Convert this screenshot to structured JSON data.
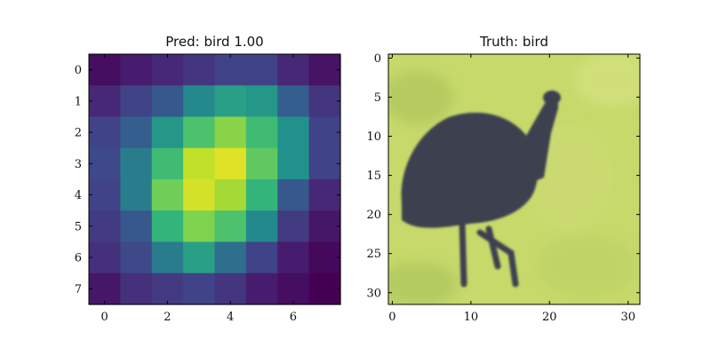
{
  "chart_data": [
    {
      "type": "heatmap",
      "title": "Pred: bird 1.00",
      "colormap": "viridis",
      "x_ticks": [
        0,
        2,
        4,
        6
      ],
      "y_ticks": [
        0,
        1,
        2,
        3,
        4,
        5,
        6,
        7
      ],
      "xlim": [
        -0.5,
        7.5
      ],
      "ylim": [
        7.5,
        -0.5
      ],
      "grid": false,
      "values": [
        [
          0.05,
          0.1,
          0.15,
          0.2,
          0.25,
          0.25,
          0.15,
          0.07
        ],
        [
          0.15,
          0.25,
          0.35,
          0.48,
          0.55,
          0.52,
          0.38,
          0.2
        ],
        [
          0.25,
          0.38,
          0.52,
          0.68,
          0.8,
          0.65,
          0.5,
          0.25
        ],
        [
          0.28,
          0.45,
          0.65,
          0.9,
          0.95,
          0.72,
          0.5,
          0.25
        ],
        [
          0.25,
          0.45,
          0.75,
          0.93,
          0.85,
          0.62,
          0.35,
          0.15
        ],
        [
          0.22,
          0.35,
          0.62,
          0.78,
          0.68,
          0.48,
          0.22,
          0.08
        ],
        [
          0.18,
          0.28,
          0.45,
          0.55,
          0.42,
          0.25,
          0.1,
          0.03
        ],
        [
          0.08,
          0.18,
          0.22,
          0.25,
          0.2,
          0.1,
          0.05,
          0.0
        ]
      ]
    },
    {
      "type": "image",
      "title": "Truth: bird",
      "x_ticks": [
        0,
        10,
        20,
        30
      ],
      "y_ticks": [
        0,
        5,
        10,
        15,
        20,
        25,
        30
      ],
      "xlim": [
        -0.5,
        31.5
      ],
      "ylim": [
        31.5,
        -0.5
      ],
      "grid": false,
      "image_width": 32,
      "image_height": 32,
      "background_color": "#c6d96a",
      "subject_color": "#3c4150"
    }
  ]
}
